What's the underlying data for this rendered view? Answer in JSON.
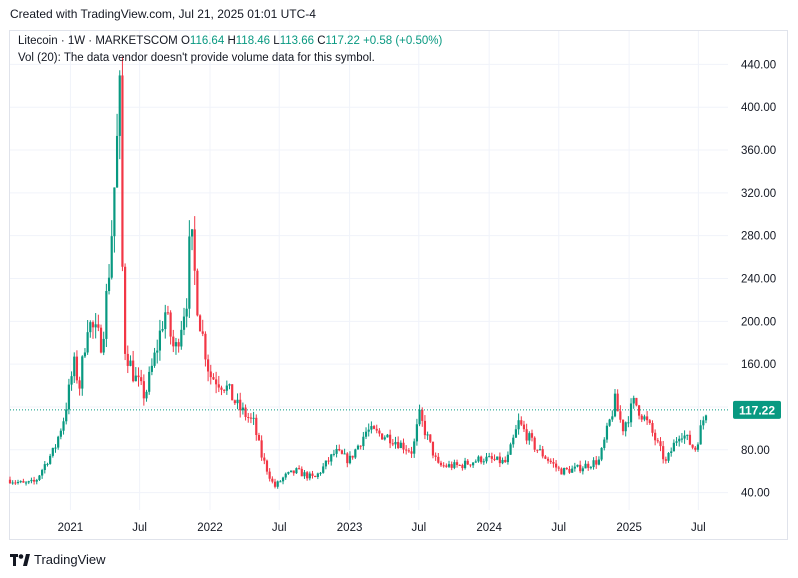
{
  "header": {
    "created_text": "Created with TradingView.com, Jul 21, 2025 01:01 UTC-4"
  },
  "legend": {
    "symbol": "Litecoin · 1W · MARKETSCOM",
    "open_label": "O",
    "open": "116.64",
    "high_label": "H",
    "high": "118.46",
    "low_label": "L",
    "low": "113.66",
    "close_label": "C",
    "close": "117.22",
    "change": "+0.58 (+0.50%)",
    "volume_note": "Vol (20): The data vendor doesn't provide volume data for this symbol."
  },
  "footer": {
    "brand": "TradingView"
  },
  "colors": {
    "up": "#089981",
    "down": "#f23645",
    "last_price_bg": "#089981",
    "grid": "#f0f3fa"
  },
  "chart_data": {
    "type": "candlestick",
    "title": "",
    "ylim": [
      20,
      460
    ],
    "y_ticks": [
      40,
      80,
      120,
      160,
      200,
      240,
      280,
      320,
      360,
      400,
      440
    ],
    "y_tick_labels": [
      "40.00",
      "80.00",
      "",
      "160.00",
      "200.00",
      "240.00",
      "280.00",
      "320.00",
      "360.00",
      "400.00",
      "440.00"
    ],
    "x_ticks": [
      {
        "date": "2021-01-01",
        "label": "2021"
      },
      {
        "date": "2021-07-01",
        "label": "Jul"
      },
      {
        "date": "2022-01-01",
        "label": "2022"
      },
      {
        "date": "2022-07-01",
        "label": "Jul"
      },
      {
        "date": "2023-01-01",
        "label": "2023"
      },
      {
        "date": "2023-07-01",
        "label": "Jul"
      },
      {
        "date": "2024-01-01",
        "label": "2024"
      },
      {
        "date": "2024-07-01",
        "label": "Jul"
      },
      {
        "date": "2025-01-01",
        "label": "2025"
      },
      {
        "date": "2025-07-01",
        "label": "Jul"
      }
    ],
    "last_price": 117.22,
    "last_price_label": "117.22",
    "series": [
      {
        "date": "2020-07-27",
        "close": 52
      },
      {
        "date": "2020-09-01",
        "close": 48
      },
      {
        "date": "2020-10-01",
        "close": 50
      },
      {
        "date": "2020-11-01",
        "close": 70
      },
      {
        "date": "2020-11-20",
        "close": 80
      },
      {
        "date": "2020-12-15",
        "close": 110
      },
      {
        "date": "2021-01-10",
        "close": 160
      },
      {
        "date": "2021-01-25",
        "close": 140
      },
      {
        "date": "2021-02-15",
        "close": 200
      },
      {
        "date": "2021-03-05",
        "close": 190
      },
      {
        "date": "2021-03-25",
        "close": 180
      },
      {
        "date": "2021-04-15",
        "close": 260
      },
      {
        "date": "2021-05-06",
        "close": 385
      },
      {
        "date": "2021-05-10",
        "close": 410
      },
      {
        "date": "2021-05-20",
        "close": 180
      },
      {
        "date": "2021-06-15",
        "close": 150
      },
      {
        "date": "2021-07-15",
        "close": 130
      },
      {
        "date": "2021-08-15",
        "close": 175
      },
      {
        "date": "2021-09-05",
        "close": 210
      },
      {
        "date": "2021-10-01",
        "close": 170
      },
      {
        "date": "2021-11-05",
        "close": 230
      },
      {
        "date": "2021-11-10",
        "close": 290
      },
      {
        "date": "2021-12-01",
        "close": 210
      },
      {
        "date": "2021-12-31",
        "close": 150
      },
      {
        "date": "2022-02-10",
        "close": 140
      },
      {
        "date": "2022-03-15",
        "close": 120
      },
      {
        "date": "2022-04-25",
        "close": 105
      },
      {
        "date": "2022-05-15",
        "close": 75
      },
      {
        "date": "2022-06-18",
        "close": 45
      },
      {
        "date": "2022-07-15",
        "close": 55
      },
      {
        "date": "2022-08-15",
        "close": 60
      },
      {
        "date": "2022-10-01",
        "close": 53
      },
      {
        "date": "2022-11-25",
        "close": 78
      },
      {
        "date": "2022-12-31",
        "close": 70
      },
      {
        "date": "2023-02-15",
        "close": 98
      },
      {
        "date": "2023-04-15",
        "close": 92
      },
      {
        "date": "2023-06-15",
        "close": 78
      },
      {
        "date": "2023-07-02",
        "close": 112
      },
      {
        "date": "2023-08-20",
        "close": 65
      },
      {
        "date": "2023-10-15",
        "close": 65
      },
      {
        "date": "2023-12-15",
        "close": 72
      },
      {
        "date": "2024-02-15",
        "close": 68
      },
      {
        "date": "2024-03-18",
        "close": 105
      },
      {
        "date": "2024-05-01",
        "close": 82
      },
      {
        "date": "2024-07-05",
        "close": 60
      },
      {
        "date": "2024-08-15",
        "close": 62
      },
      {
        "date": "2024-10-15",
        "close": 70
      },
      {
        "date": "2024-11-25",
        "close": 125
      },
      {
        "date": "2024-12-15",
        "close": 100
      },
      {
        "date": "2025-01-15",
        "close": 125
      },
      {
        "date": "2025-02-25",
        "close": 100
      },
      {
        "date": "2025-04-07",
        "close": 68
      },
      {
        "date": "2025-05-15",
        "close": 98
      },
      {
        "date": "2025-06-22",
        "close": 80
      },
      {
        "date": "2025-07-21",
        "close": 117.22
      }
    ]
  }
}
